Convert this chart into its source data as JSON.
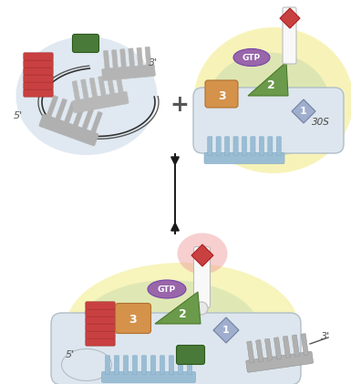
{
  "bg_color": "#ffffff",
  "arrow_color": "#1a1a1a",
  "plus_color": "#555555",
  "label_color": "#444444",
  "red_color": "#c94040",
  "green_dark": "#4a7a3a",
  "green_tri": "#6a9a4a",
  "orange_color": "#d4924a",
  "blue_diamond_color": "#8899bb",
  "blue_mrna": "#9bbdd4",
  "gray_mrna": "#aaaaaa",
  "gtp_purple": "#9966aa",
  "white_trna": "#f8f8f8",
  "subunit_fill": "#dde6ee",
  "subunit_edge": "#b0bec8",
  "glow_yellow": "#f5f0a0",
  "glow_green": "#c8ddb0",
  "glow_blue": "#bccfe0",
  "label_30S": "30S",
  "label_GTP": "GTP",
  "lbl2": "2",
  "lbl3": "3",
  "lbl1": "1"
}
